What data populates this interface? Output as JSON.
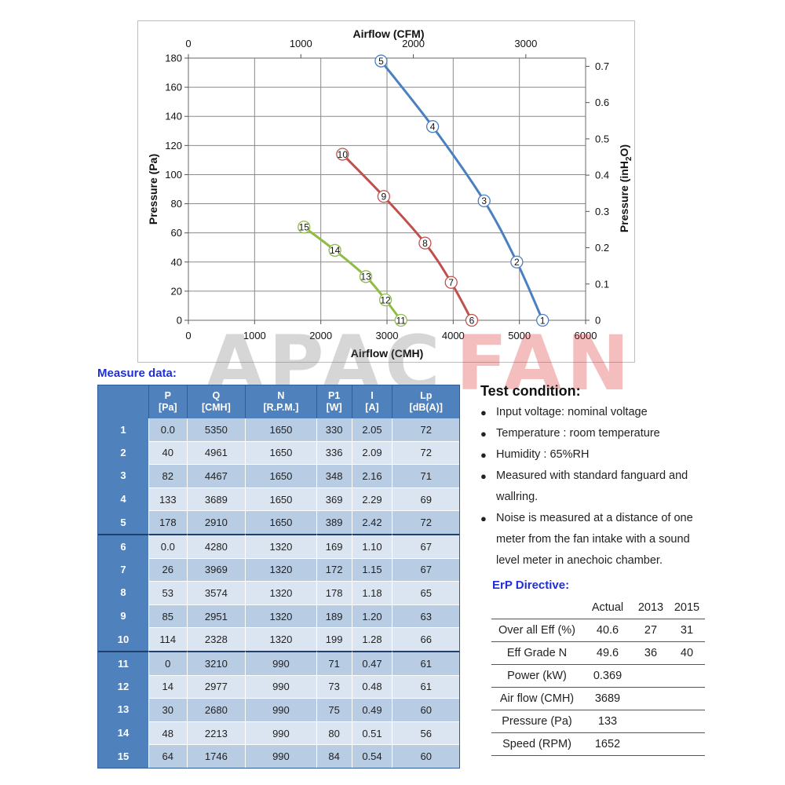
{
  "chart_data": {
    "type": "line",
    "xlabel": "Airflow (CMH)",
    "x2label": "Airflow (CFM)",
    "ylabel": "Pressure (Pa)",
    "y2label_main": "Pressure (inH",
    "y2label_sub": "2",
    "y2label_end": "O)",
    "xlim": [
      0,
      6000
    ],
    "ylim": [
      0,
      180
    ],
    "x_ticks": [
      0,
      1000,
      2000,
      3000,
      4000,
      5000,
      6000
    ],
    "y_ticks": [
      0,
      20,
      40,
      60,
      80,
      100,
      120,
      140,
      160,
      180
    ],
    "x2_ticks": [
      0,
      1000,
      2000,
      3000
    ],
    "y2_ticks": [
      0,
      0.1,
      0.2,
      0.3,
      0.4,
      0.5,
      0.6,
      0.7
    ],
    "grid": true,
    "series": [
      {
        "color": "#4a7fc0",
        "labels": [
          "1",
          "2",
          "3",
          "4",
          "5"
        ],
        "x": [
          5350,
          4961,
          4467,
          3689,
          2910
        ],
        "y": [
          0,
          40,
          82,
          133,
          178
        ]
      },
      {
        "color": "#c0504d",
        "labels": [
          "6",
          "7",
          "8",
          "9",
          "10"
        ],
        "x": [
          4280,
          3969,
          3574,
          2951,
          2328
        ],
        "y": [
          0,
          26,
          53,
          85,
          114
        ]
      },
      {
        "color": "#8fbc45",
        "labels": [
          "11",
          "12",
          "13",
          "14",
          "15"
        ],
        "x": [
          3210,
          2977,
          2680,
          2213,
          1746
        ],
        "y": [
          0,
          14,
          30,
          48,
          64
        ]
      }
    ]
  },
  "watermark": {
    "part1": "APAC",
    "part2": "FAN"
  },
  "measure": {
    "title": "Measure data:",
    "headers": [
      {
        "l1": "",
        "l2": ""
      },
      {
        "l1": "P",
        "l2": "[Pa]"
      },
      {
        "l1": "Q",
        "l2": "[CMH]"
      },
      {
        "l1": "N",
        "l2": "[R.P.M.]"
      },
      {
        "l1": "P1",
        "l2": "[W]"
      },
      {
        "l1": "I",
        "l2": "[A]"
      },
      {
        "l1": "Lp",
        "l2": "[dB(A)]"
      }
    ],
    "rows": [
      [
        "1",
        "0.0",
        "5350",
        "1650",
        "330",
        "2.05",
        "72"
      ],
      [
        "2",
        "40",
        "4961",
        "1650",
        "336",
        "2.09",
        "72"
      ],
      [
        "3",
        "82",
        "4467",
        "1650",
        "348",
        "2.16",
        "71"
      ],
      [
        "4",
        "133",
        "3689",
        "1650",
        "369",
        "2.29",
        "69"
      ],
      [
        "5",
        "178",
        "2910",
        "1650",
        "389",
        "2.42",
        "72"
      ],
      [
        "6",
        "0.0",
        "4280",
        "1320",
        "169",
        "1.10",
        "67"
      ],
      [
        "7",
        "26",
        "3969",
        "1320",
        "172",
        "1.15",
        "67"
      ],
      [
        "8",
        "53",
        "3574",
        "1320",
        "178",
        "1.18",
        "65"
      ],
      [
        "9",
        "85",
        "2951",
        "1320",
        "189",
        "1.20",
        "63"
      ],
      [
        "10",
        "114",
        "2328",
        "1320",
        "199",
        "1.28",
        "66"
      ],
      [
        "11",
        "0",
        "3210",
        "990",
        "71",
        "0.47",
        "61"
      ],
      [
        "12",
        "14",
        "2977",
        "990",
        "73",
        "0.48",
        "61"
      ],
      [
        "13",
        "30",
        "2680",
        "990",
        "75",
        "0.49",
        "60"
      ],
      [
        "14",
        "48",
        "2213",
        "990",
        "80",
        "0.51",
        "56"
      ],
      [
        "15",
        "64",
        "1746",
        "990",
        "84",
        "0.54",
        "60"
      ]
    ]
  },
  "test_condition": {
    "title": "Test condition:",
    "items": [
      "Input voltage: nominal voltage",
      "Temperature : room temperature",
      "Humidity : 65%RH",
      "Measured with standard fanguard and wallring.",
      "Noise is measured at a distance of one meter from the fan intake with a sound level meter in anechoic chamber."
    ]
  },
  "erp": {
    "title": "ErP Directive:",
    "headers": [
      "",
      "Actual",
      "2013",
      "2015"
    ],
    "rows": [
      [
        "Over all Eff (%)",
        "40.6",
        "27",
        "31"
      ],
      [
        "Eff Grade N",
        "49.6",
        "36",
        "40"
      ],
      [
        "Power (kW)",
        "0.369",
        "",
        ""
      ],
      [
        "Air flow (CMH)",
        "3689",
        "",
        ""
      ],
      [
        "Pressure (Pa)",
        "133",
        "",
        ""
      ],
      [
        "Speed (RPM)",
        "1652",
        "",
        ""
      ]
    ]
  }
}
